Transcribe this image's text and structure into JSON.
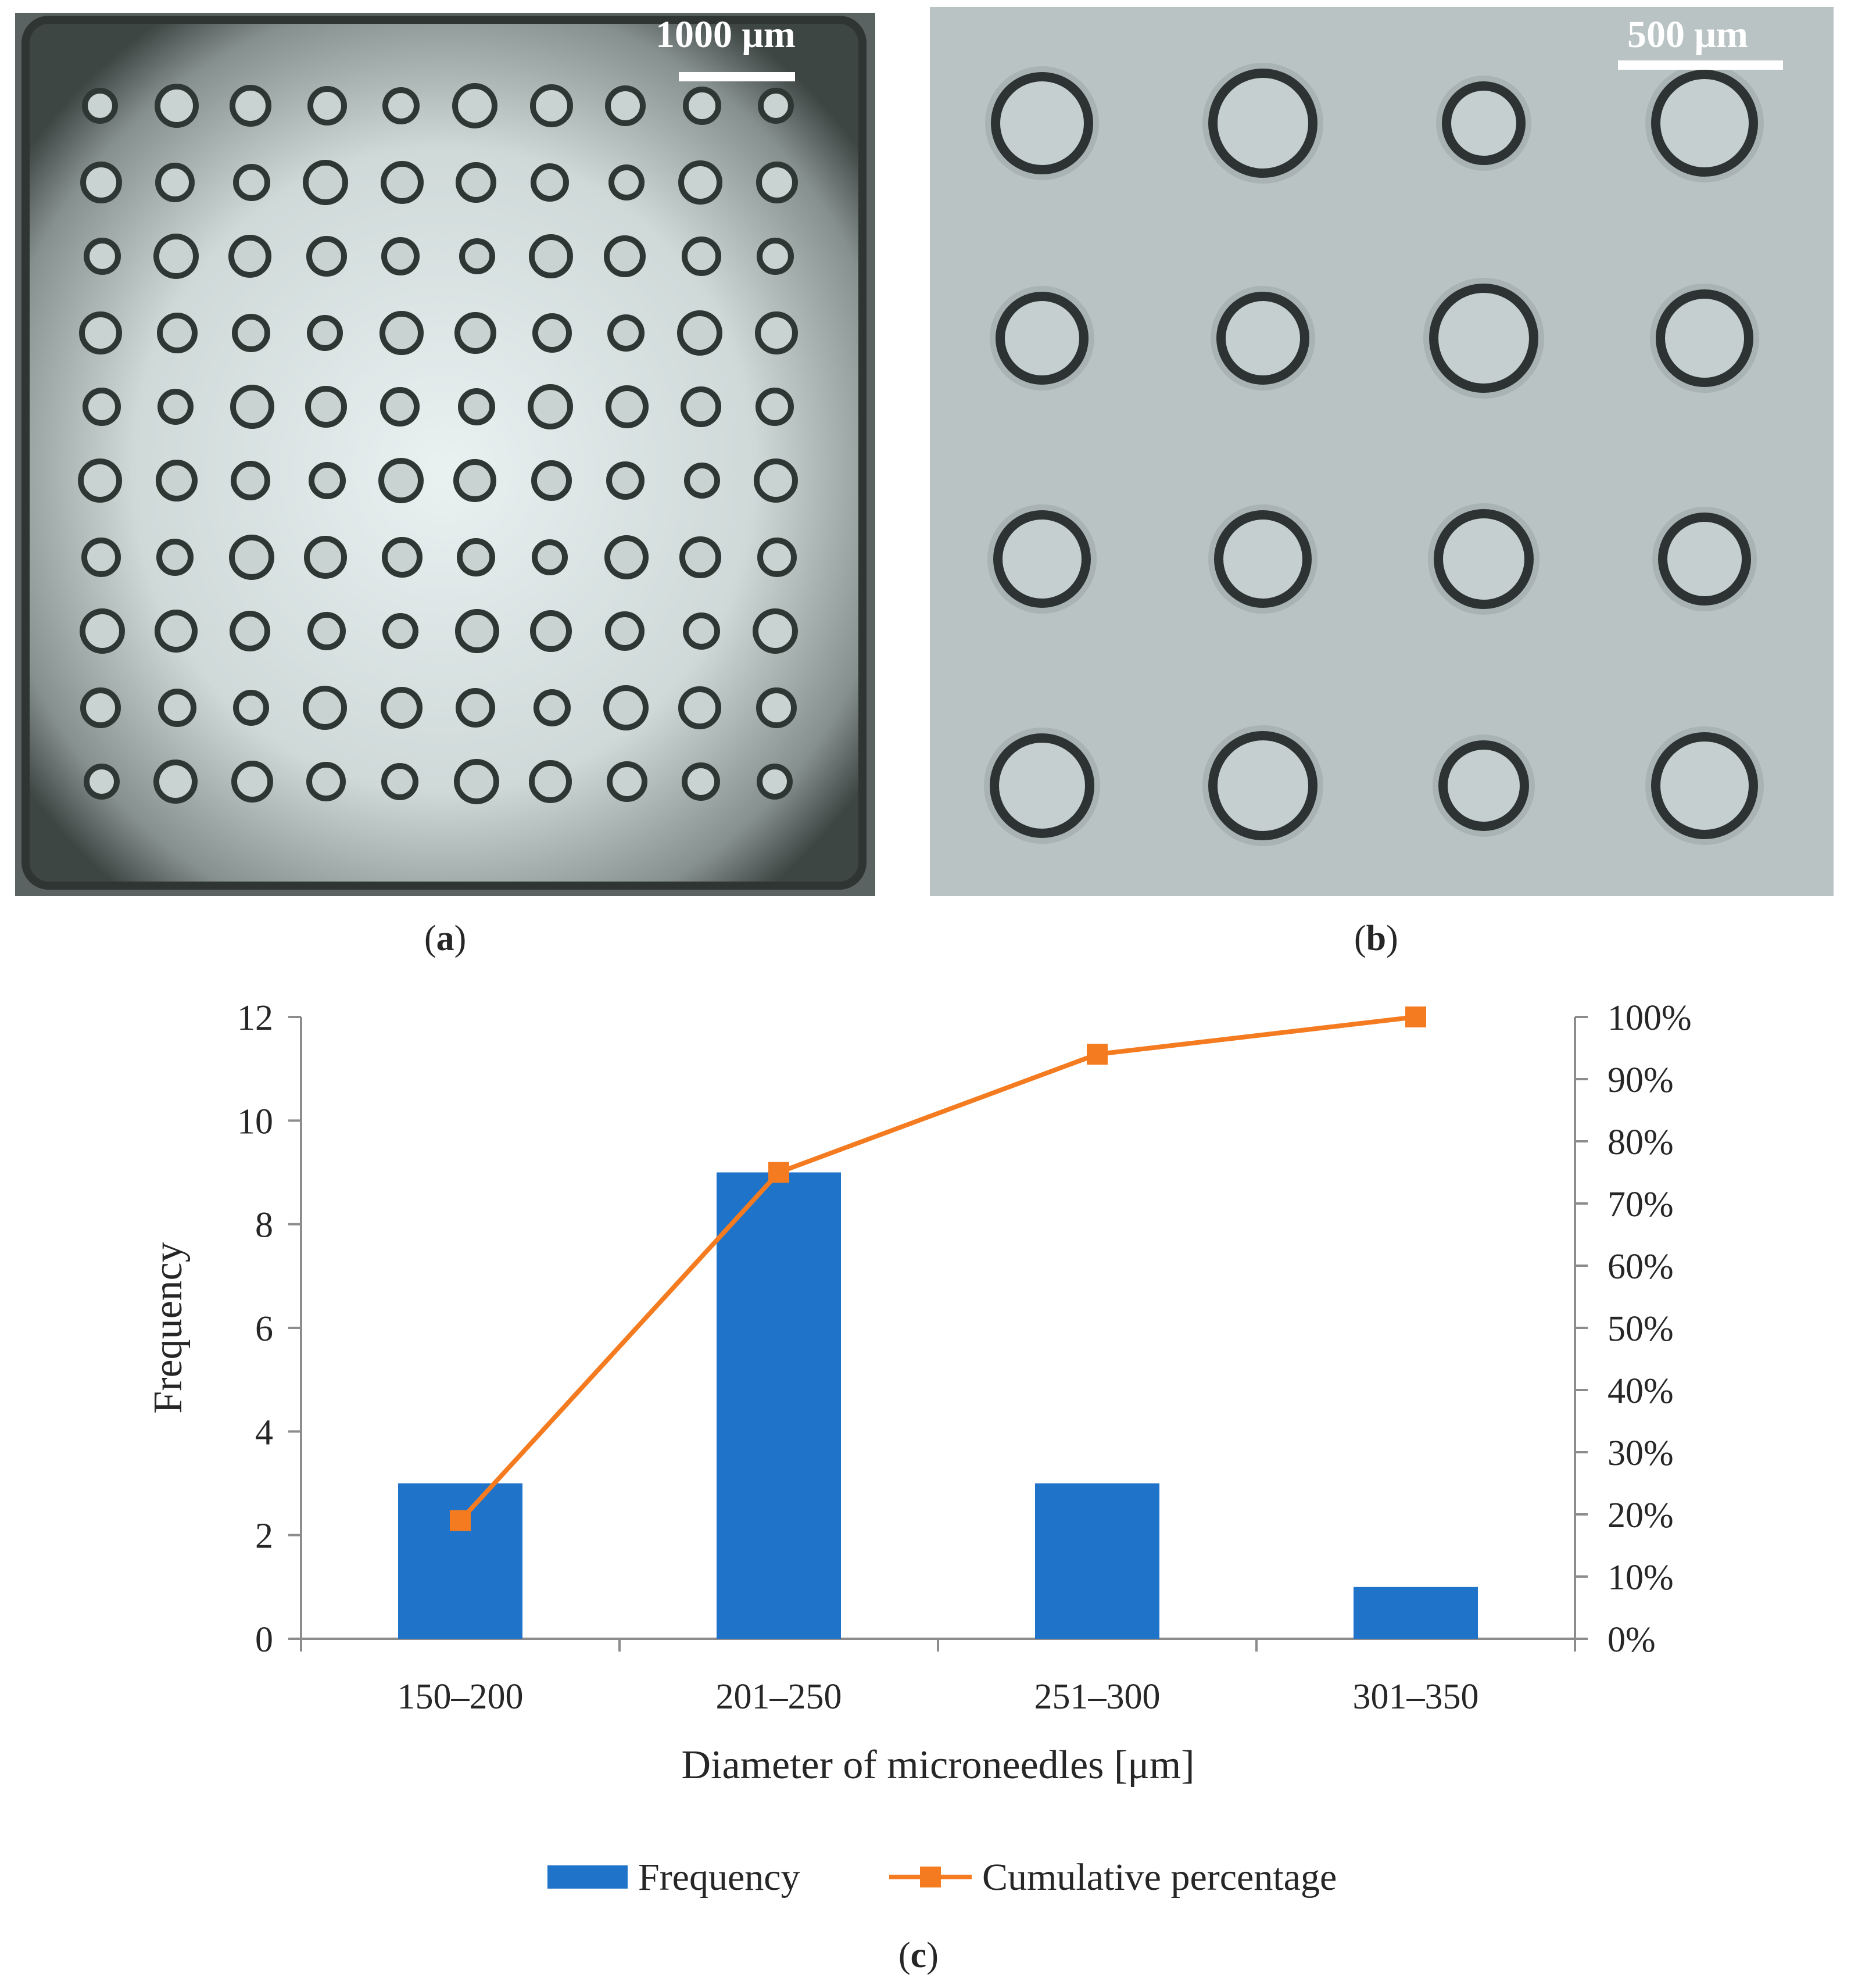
{
  "panels": {
    "a": {
      "label": "a",
      "scalebar": "1000 μm"
    },
    "b": {
      "label": "b",
      "scalebar": "500 μm"
    },
    "c": {
      "label": "c"
    }
  },
  "chart_data": {
    "type": "bar",
    "categories": [
      "150–200",
      "201–250",
      "251–300",
      "301–350"
    ],
    "series": [
      {
        "name": "Frequency",
        "kind": "bar",
        "axis": "left",
        "color": "#1f73c9",
        "values": [
          3,
          9,
          3,
          1
        ]
      },
      {
        "name": "Cumulative percentage",
        "kind": "line",
        "axis": "right",
        "color": "#f47b20",
        "values": [
          19,
          75,
          94,
          100
        ]
      }
    ],
    "xlabel": "Diameter of microneedles [μm]",
    "ylabel": "Frequency",
    "ylim": [
      0,
      12
    ],
    "yticks": [
      "0",
      "2",
      "4",
      "6",
      "8",
      "10",
      "12"
    ],
    "y2lim": [
      0,
      100
    ],
    "y2ticks": [
      "0%",
      "10%",
      "20%",
      "30%",
      "40%",
      "50%",
      "60%",
      "70%",
      "80%",
      "90%",
      "100%"
    ],
    "legend_position": "bottom"
  }
}
